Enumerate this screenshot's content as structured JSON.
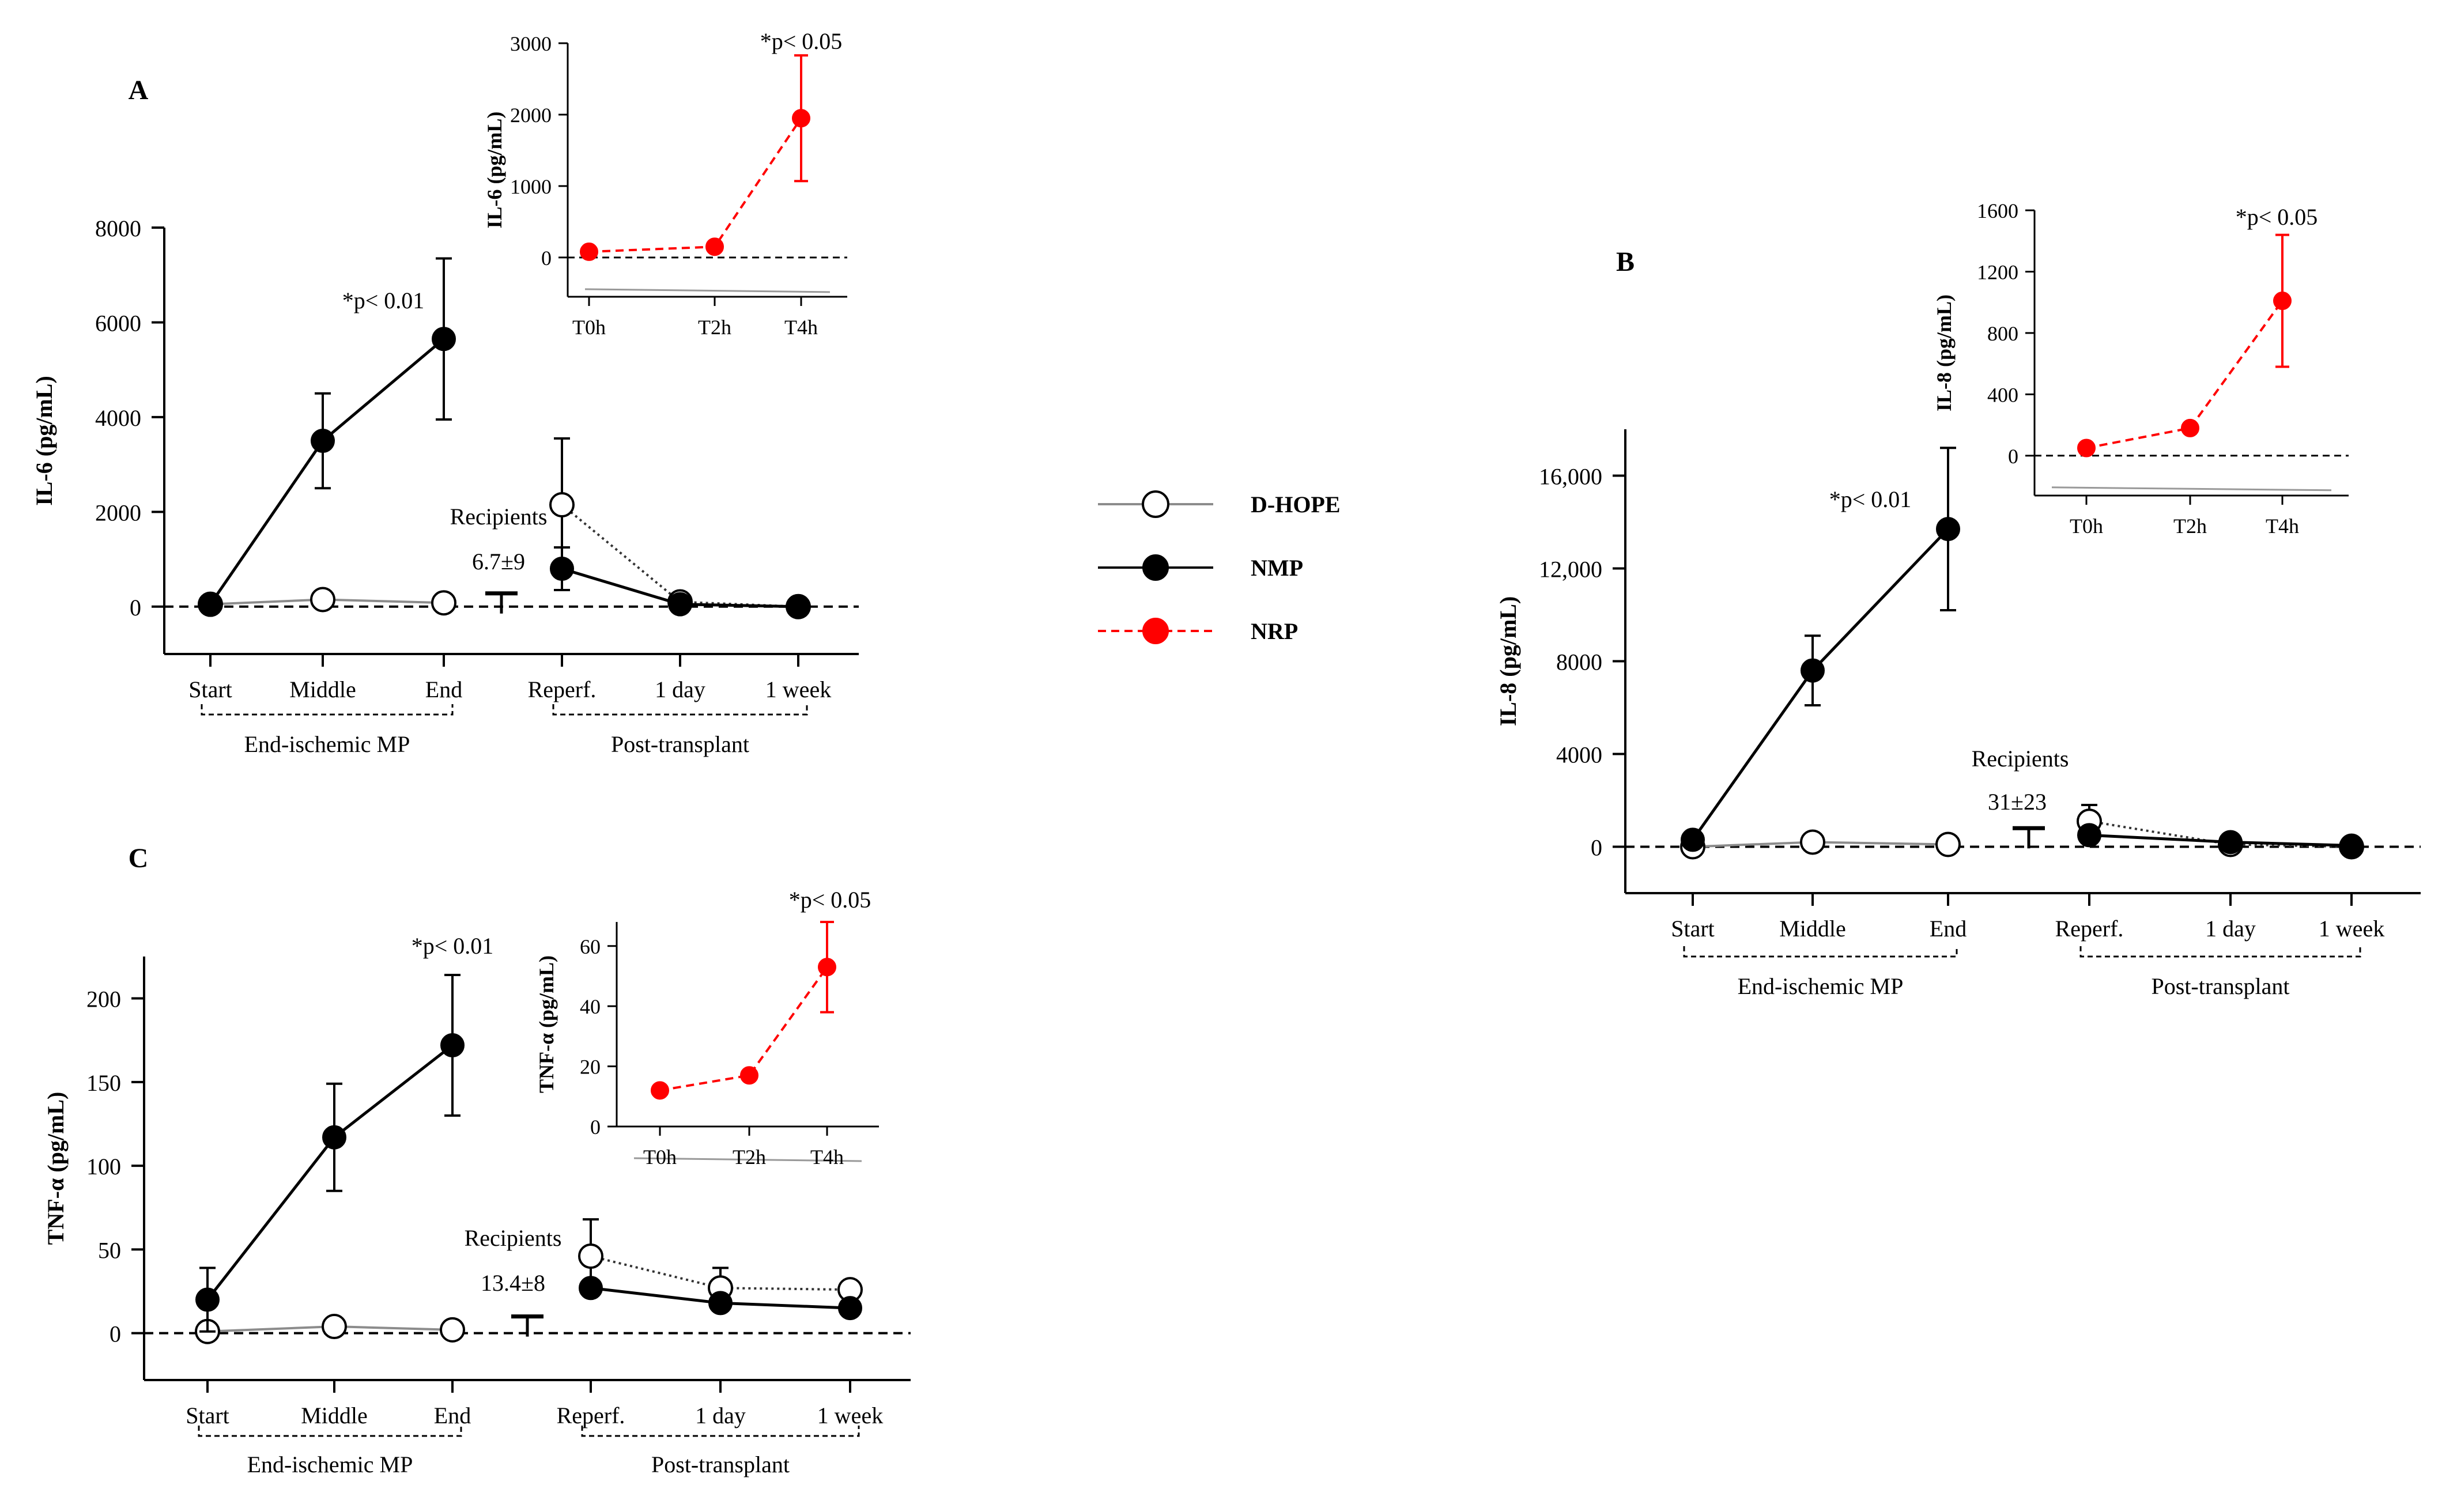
{
  "legend": {
    "entries": [
      {
        "name": "D-HOPE",
        "marker": "open-circle",
        "line_color": "#8c8c8c",
        "line_style": "solid"
      },
      {
        "name": "NMP",
        "marker": "filled-circle",
        "line_color": "#000000",
        "line_style": "solid"
      },
      {
        "name": "NRP",
        "marker": "red-circle",
        "line_color": "#ff0000",
        "line_style": "dashed"
      }
    ]
  },
  "colors": {
    "dhope": "#8c8c8c",
    "nmp": "#000000",
    "nrp": "#ff0000",
    "axis": "#000000"
  },
  "chart_data": [
    {
      "panel": "A",
      "type": "line",
      "title": "",
      "ylabel": "IL-6 (pg/mL)",
      "yticks": [
        0,
        2000,
        4000,
        6000,
        8000
      ],
      "ytick_labels": [
        "0",
        "2000",
        "4000",
        "6000",
        "8000"
      ],
      "ylim": [
        -1000,
        8000
      ],
      "categories": [
        "Start",
        "Middle",
        "End",
        "Reperf.",
        "1 day",
        "1 week"
      ],
      "groups": [
        {
          "label": "End-ischemic MP",
          "from": 0,
          "to": 2
        },
        {
          "label": "Post-transplant",
          "from": 3,
          "to": 5
        }
      ],
      "series": [
        {
          "name": "D-HOPE",
          "key": "dhope",
          "segments": [
            {
              "indices": [
                0,
                1,
                2
              ],
              "values": [
                50,
                150,
                80
              ],
              "err": [
                0,
                0,
                0
              ],
              "dotted": false
            },
            {
              "indices": [
                3,
                4,
                5
              ],
              "values": [
                2150,
                100,
                0
              ],
              "err": [
                1400,
                0,
                0
              ],
              "dotted": true
            }
          ]
        },
        {
          "name": "NMP",
          "key": "nmp",
          "segments": [
            {
              "indices": [
                0,
                1,
                2
              ],
              "values": [
                50,
                3500,
                5650
              ],
              "err": [
                0,
                1000,
                1700
              ],
              "dotted": false
            },
            {
              "indices": [
                3,
                4,
                5
              ],
              "values": [
                800,
                50,
                0
              ],
              "err": [
                450,
                0,
                0
              ],
              "dotted": false
            }
          ]
        }
      ],
      "annotation": "*p< 0.01",
      "recipients": {
        "label": "Recipients",
        "value": "6.7±9",
        "level": 280
      },
      "inset": {
        "ylabel": "IL-6 (pg/mL)",
        "categories": [
          "T0h",
          "T2h",
          "T4h"
        ],
        "yticks": [
          0,
          1000,
          2000,
          3000
        ],
        "ytick_labels": [
          "0",
          "1000",
          "2000",
          "3000"
        ],
        "ylim": [
          -550,
          3000
        ],
        "values": [
          80,
          150,
          1950
        ],
        "err": [
          0,
          0,
          880
        ],
        "annotation": "*p< 0.05"
      }
    },
    {
      "panel": "B",
      "type": "line",
      "title": "",
      "ylabel": "IL-8 (pg/mL)",
      "yticks": [
        0,
        4000,
        8000,
        12000,
        16000
      ],
      "ytick_labels": [
        "0",
        "4000",
        "8000",
        "12,000",
        "16,000"
      ],
      "ylim": [
        -2000,
        18000
      ],
      "categories": [
        "Start",
        "Middle",
        "End",
        "Reperf.",
        "1 day",
        "1 week"
      ],
      "groups": [
        {
          "label": "End-ischemic MP",
          "from": 0,
          "to": 2
        },
        {
          "label": "Post-transplant",
          "from": 3,
          "to": 5
        }
      ],
      "series": [
        {
          "name": "D-HOPE",
          "key": "dhope",
          "segments": [
            {
              "indices": [
                0,
                1,
                2
              ],
              "values": [
                0,
                200,
                100
              ],
              "err": [
                0,
                0,
                0
              ],
              "dotted": false
            },
            {
              "indices": [
                3,
                4,
                5
              ],
              "values": [
                1100,
                100,
                0
              ],
              "err": [
                700,
                0,
                0
              ],
              "dotted": true
            }
          ]
        },
        {
          "name": "NMP",
          "key": "nmp",
          "segments": [
            {
              "indices": [
                0,
                1,
                2
              ],
              "values": [
                300,
                7600,
                13700
              ],
              "err": [
                0,
                1500,
                3500
              ],
              "dotted": false
            },
            {
              "indices": [
                3,
                4,
                5
              ],
              "values": [
                500,
                200,
                50
              ],
              "err": [
                0,
                0,
                0
              ],
              "dotted": false
            }
          ]
        }
      ],
      "annotation": "*p< 0.01",
      "recipients": {
        "label": "Recipients",
        "value": "31±23",
        "level": 800
      },
      "inset": {
        "ylabel": "IL-8 (pg/mL)",
        "categories": [
          "T0h",
          "T2h",
          "T4h"
        ],
        "yticks": [
          0,
          400,
          800,
          1200,
          1600
        ],
        "ytick_labels": [
          "0",
          "400",
          "800",
          "1200",
          "1600"
        ],
        "ylim": [
          -260,
          1600
        ],
        "values": [
          50,
          180,
          1010
        ],
        "err": [
          0,
          0,
          430
        ],
        "annotation": "*p< 0.05"
      }
    },
    {
      "panel": "C",
      "type": "line",
      "title": "",
      "ylabel": "TNF-α (pg/mL)",
      "yticks": [
        0,
        50,
        100,
        150,
        200
      ],
      "ytick_labels": [
        "0",
        "50",
        "100",
        "150",
        "200"
      ],
      "ylim": [
        -28,
        225
      ],
      "categories": [
        "Start",
        "Middle",
        "End",
        "Reperf.",
        "1 day",
        "1 week"
      ],
      "groups": [
        {
          "label": "End-ischemic MP",
          "from": 0,
          "to": 2
        },
        {
          "label": "Post-transplant",
          "from": 3,
          "to": 5
        }
      ],
      "series": [
        {
          "name": "D-HOPE",
          "key": "dhope",
          "segments": [
            {
              "indices": [
                0,
                1,
                2
              ],
              "values": [
                1,
                4,
                2
              ],
              "err": [
                0,
                0,
                0
              ],
              "dotted": false
            },
            {
              "indices": [
                3,
                4,
                5
              ],
              "values": [
                46,
                27,
                26
              ],
              "err": [
                22,
                12,
                0
              ],
              "dotted": true
            }
          ]
        },
        {
          "name": "NMP",
          "key": "nmp",
          "segments": [
            {
              "indices": [
                0,
                1,
                2
              ],
              "values": [
                20,
                117,
                172
              ],
              "err": [
                19,
                32,
                42
              ],
              "dotted": false
            },
            {
              "indices": [
                3,
                4,
                5
              ],
              "values": [
                27,
                18,
                15
              ],
              "err": [
                0,
                0,
                0
              ],
              "dotted": false
            }
          ]
        }
      ],
      "annotation": "*p< 0.01",
      "recipients": {
        "label": "Recipients",
        "value": "13.4±8",
        "level": 10
      },
      "inset": {
        "ylabel": "TNF-α (pg/mL)",
        "categories": [
          "T0h",
          "T2h",
          "T4h"
        ],
        "yticks": [
          0,
          20,
          40,
          60
        ],
        "ytick_labels": [
          "0",
          "20",
          "40",
          "60"
        ],
        "ylim": [
          0,
          68
        ],
        "values": [
          12,
          17,
          53
        ],
        "err": [
          0,
          0,
          15
        ],
        "annotation": "*p< 0.05"
      }
    }
  ]
}
